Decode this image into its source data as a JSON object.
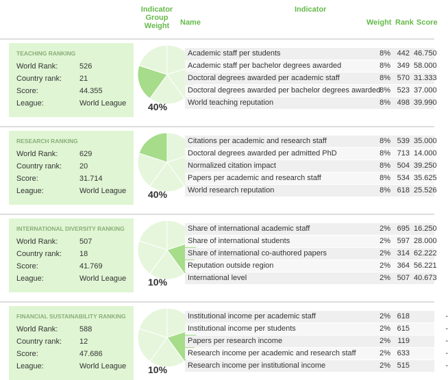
{
  "header": {
    "group_weight": "Indicator Group Weight",
    "indicator": "Indicator",
    "name": "Name",
    "weight": "Weight",
    "rank": "Rank",
    "score": "Score"
  },
  "groups": [
    {
      "title": "TEACHING RANKING",
      "rows": [
        {
          "label": "World Rank:",
          "value": "526"
        },
        {
          "label": "Country rank:",
          "value": "21"
        },
        {
          "label": "Score:",
          "value": "44.355"
        },
        {
          "label": "League:",
          "value": "World League"
        }
      ],
      "weight": "40%",
      "indicators": [
        {
          "name": "Academic staff per students",
          "weight": "8%",
          "rank": "442",
          "score": "46.750"
        },
        {
          "name": "Academic staff per bachelor degrees awarded",
          "weight": "8%",
          "rank": "349",
          "score": "58.000"
        },
        {
          "name": "Doctoral degrees awarded per academic staff",
          "weight": "8%",
          "rank": "570",
          "score": "31.333"
        },
        {
          "name": "Doctoral degrees awarded per bachelor degrees awarded",
          "weight": "8%",
          "rank": "523",
          "score": "37.000"
        },
        {
          "name": "World teaching reputation",
          "weight": "8%",
          "rank": "498",
          "score": "39.990"
        }
      ]
    },
    {
      "title": "RESEARCH RANKING",
      "rows": [
        {
          "label": "World Rank:",
          "value": "629"
        },
        {
          "label": "Country rank:",
          "value": "20"
        },
        {
          "label": "Score:",
          "value": "31.714"
        },
        {
          "label": "League:",
          "value": "World League"
        }
      ],
      "weight": "40%",
      "indicators": [
        {
          "name": "Citations per academic and research staff",
          "weight": "8%",
          "rank": "539",
          "score": "35.000"
        },
        {
          "name": "Doctoral degrees awarded per admitted PhD",
          "weight": "8%",
          "rank": "713",
          "score": "14.000"
        },
        {
          "name": "Normalized citation impact",
          "weight": "8%",
          "rank": "504",
          "score": "39.250"
        },
        {
          "name": "Papers per academic and research staff",
          "weight": "8%",
          "rank": "534",
          "score": "35.625"
        },
        {
          "name": "World research reputation",
          "weight": "8%",
          "rank": "618",
          "score": "25.526"
        }
      ]
    },
    {
      "title": "INTERNATIONAL DIVERSITY RANKING",
      "rows": [
        {
          "label": "World Rank:",
          "value": "507"
        },
        {
          "label": "Country rank:",
          "value": "18"
        },
        {
          "label": "Score:",
          "value": "41.769"
        },
        {
          "label": "League:",
          "value": "World League"
        }
      ],
      "weight": "10%",
      "indicators": [
        {
          "name": "Share of international academic staff",
          "weight": "2%",
          "rank": "695",
          "score": "16.250"
        },
        {
          "name": "Share of international students",
          "weight": "2%",
          "rank": "597",
          "score": "28.000"
        },
        {
          "name": "Share of international co-authored papers",
          "weight": "2%",
          "rank": "314",
          "score": "62.222"
        },
        {
          "name": "Reputation outside region",
          "weight": "2%",
          "rank": "364",
          "score": "56.221"
        },
        {
          "name": "International level",
          "weight": "2%",
          "rank": "507",
          "score": "40.673"
        }
      ]
    },
    {
      "title": "FINANCIAL SUSTAINABILITY RANKING",
      "rows": [
        {
          "label": "World Rank:",
          "value": "588"
        },
        {
          "label": "Country rank:",
          "value": "12"
        },
        {
          "label": "Score:",
          "value": "47.686"
        },
        {
          "label": "League:",
          "value": "World League"
        }
      ],
      "weight": "10%",
      "indicators": [
        {
          "name": "Institutional income per academic staff",
          "weight": "2%",
          "rank": "618",
          "score": "-"
        },
        {
          "name": "Institutional income per students",
          "weight": "2%",
          "rank": "615",
          "score": "-"
        },
        {
          "name": "Papers per research income",
          "weight": "2%",
          "rank": "119",
          "score": "-"
        },
        {
          "name": "Research income per academic and research staff",
          "weight": "2%",
          "rank": "633",
          "score": "-"
        },
        {
          "name": "Research income per institutional income",
          "weight": "2%",
          "rank": "515",
          "score": "-"
        }
      ]
    }
  ]
}
